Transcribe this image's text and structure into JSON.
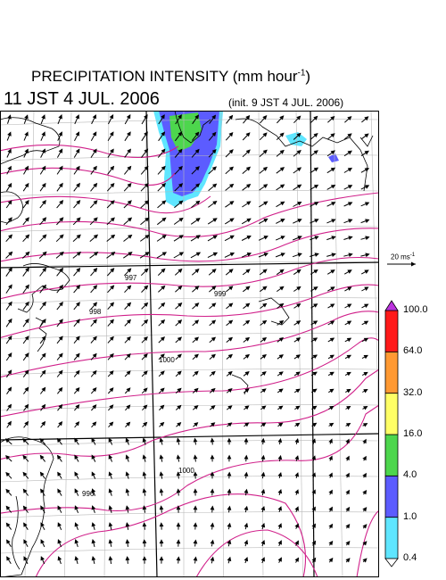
{
  "title": {
    "text": "PRECIPITATION INTENSITY (mm hour",
    "unit_sup": "-1",
    "close": ")"
  },
  "valid_time": "11 JST 4 JUL. 2006",
  "init_time": "(init. 9 JST 4 JUL. 2006)",
  "wind_scale": {
    "label": "20 ms",
    "unit_sup": "-1",
    "value": 20
  },
  "contour_labels": [
    "997",
    "999",
    "998",
    "1000",
    "1000",
    "996"
  ],
  "colorbar": {
    "levels": [
      "0.4",
      "1.0",
      "4.0",
      "16.0",
      "32.0",
      "64.0",
      "100.0"
    ],
    "colors": [
      "#5fe6ff",
      "#5c5cff",
      "#4dd64d",
      "#ffff66",
      "#ff9933",
      "#ff1a1a",
      "#bb33dd"
    ]
  }
}
